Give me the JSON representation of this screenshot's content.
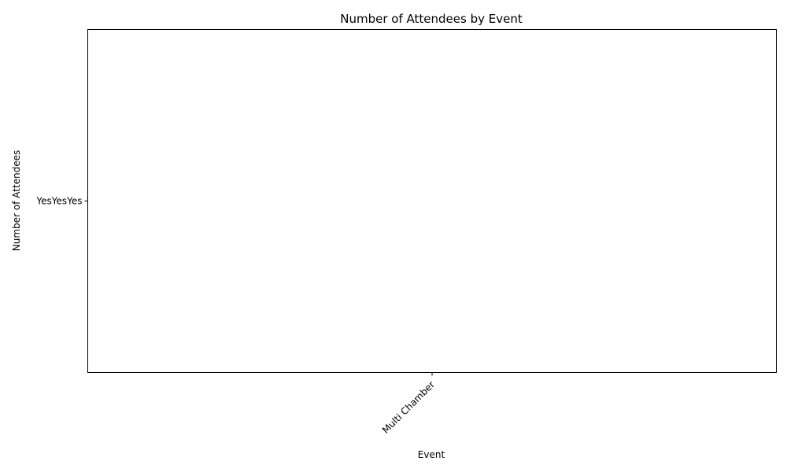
{
  "chart_data": {
    "type": "bar",
    "title": "Number of Attendees by Event",
    "xlabel": "Event",
    "ylabel": "Number of Attendees",
    "categories": [
      "Multi Chamber"
    ],
    "y_categories": [
      "YesYesYes"
    ],
    "values": [
      "YesYesYes"
    ],
    "grid": false,
    "legend": "none",
    "colors": {
      "axis": "#000000",
      "background": "#ffffff"
    }
  }
}
